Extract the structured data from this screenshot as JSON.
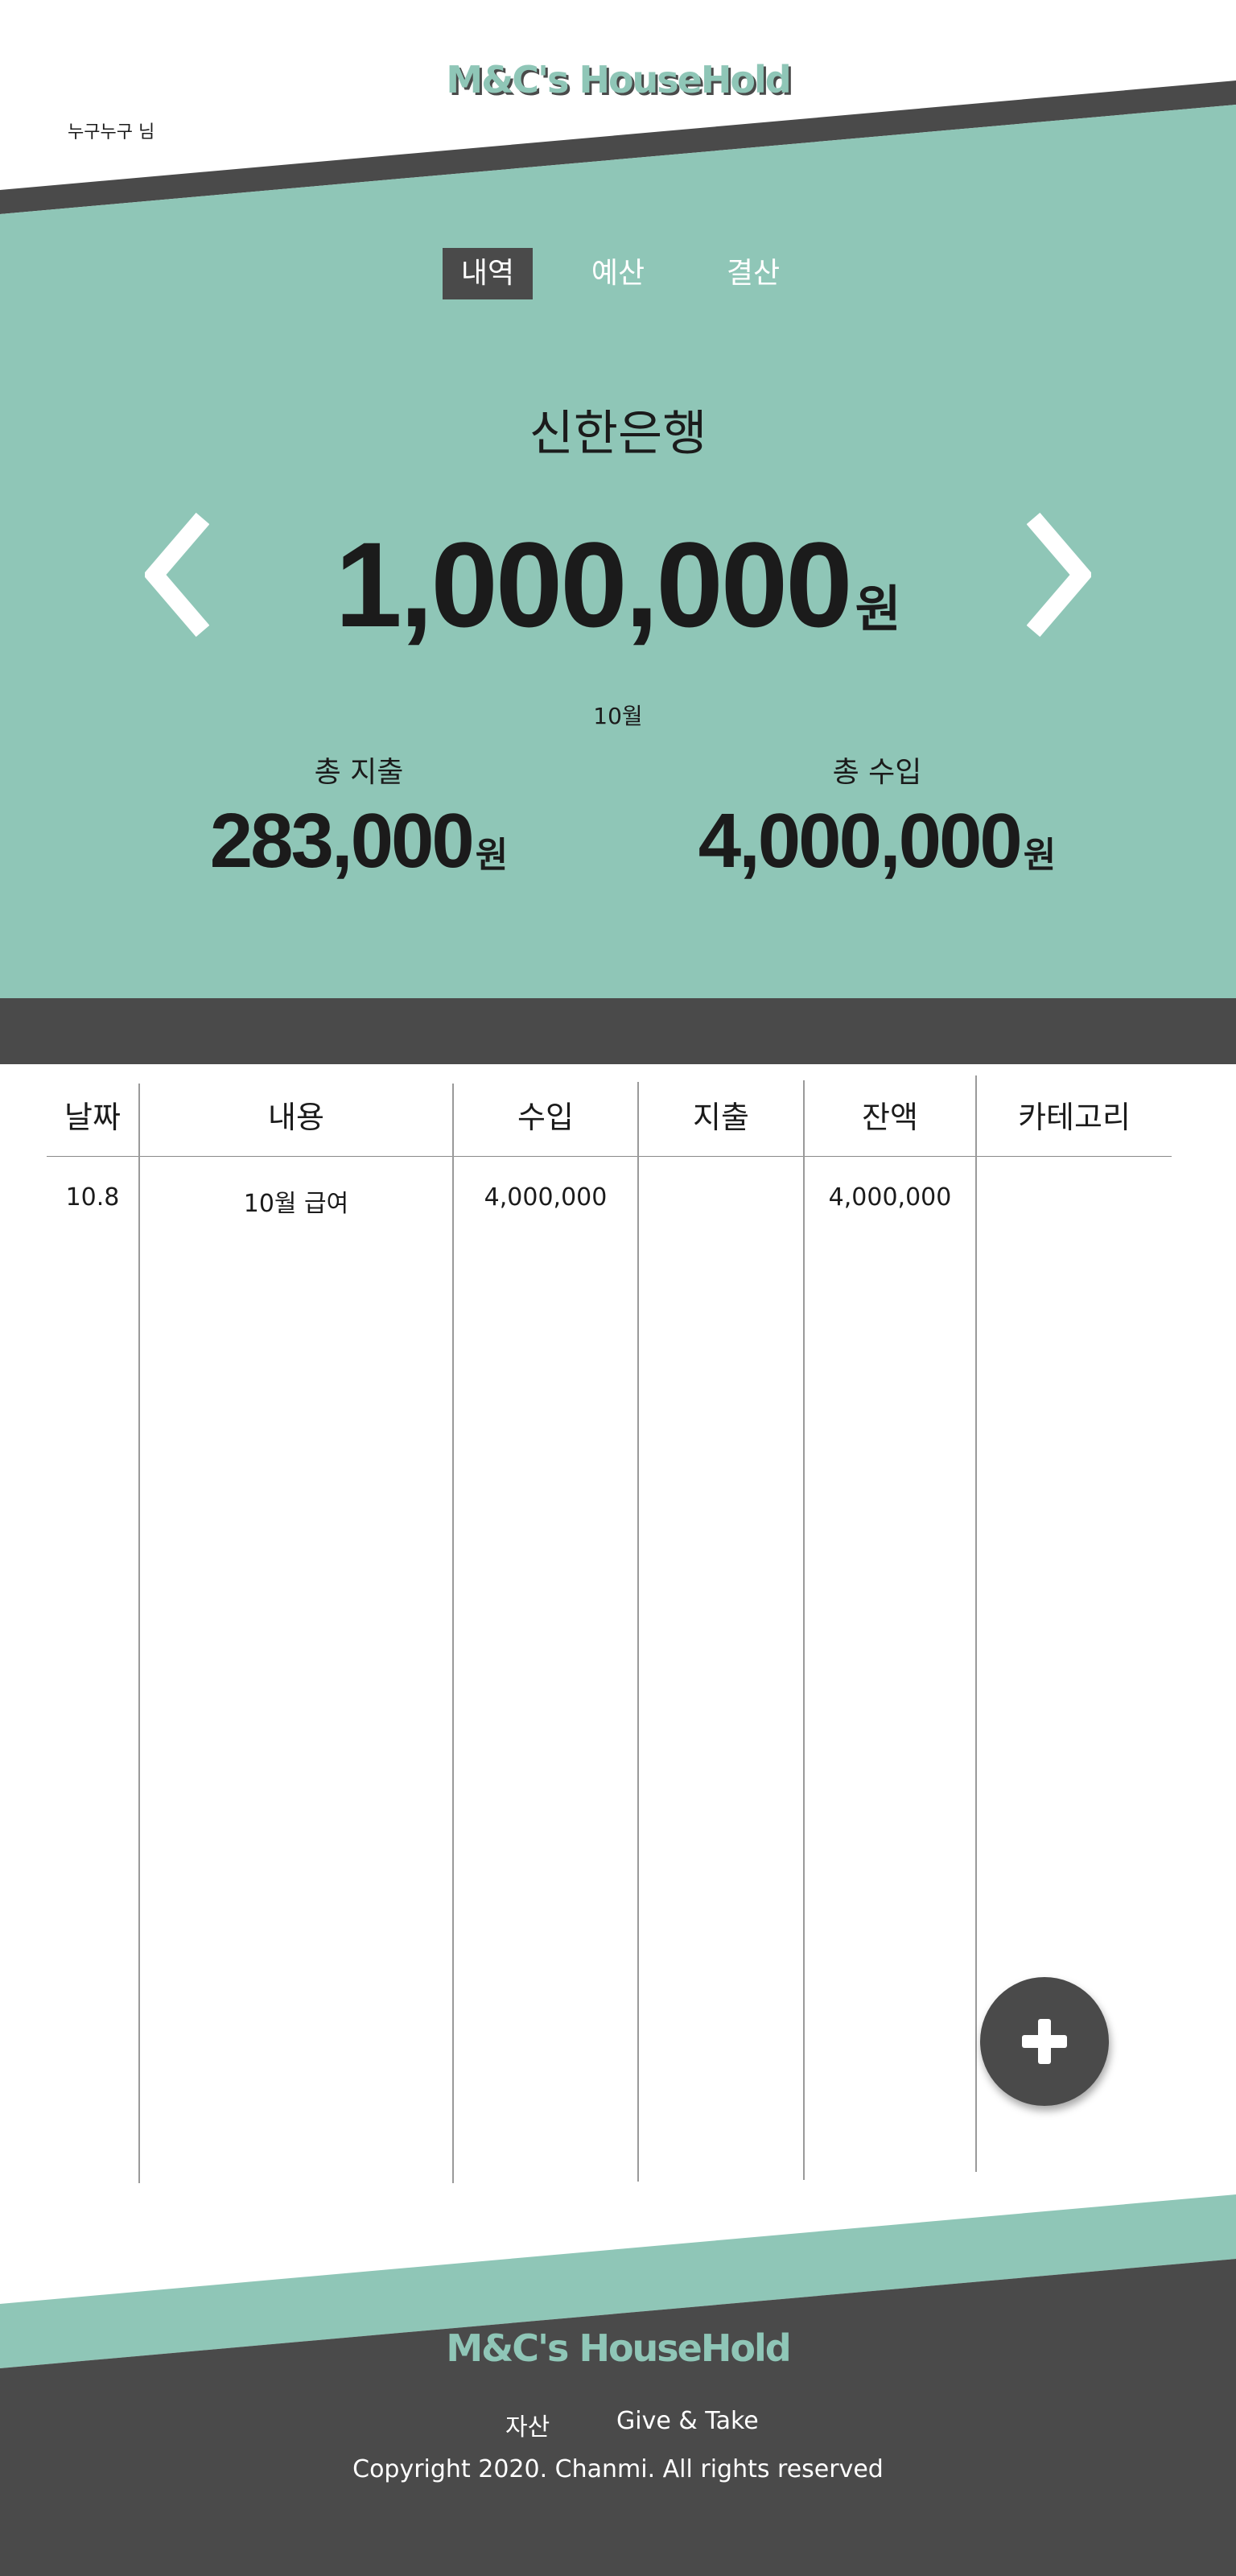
{
  "header": {
    "logo": "M&C's HouseHold",
    "user": "누구누구 님"
  },
  "tabs": [
    {
      "label": "내역",
      "active": true
    },
    {
      "label": "예산",
      "active": false
    },
    {
      "label": "결산",
      "active": false
    }
  ],
  "account": {
    "name": "신한은행",
    "balance": "1,000,000",
    "unit": "원"
  },
  "summary": {
    "month": "10월",
    "expense_label": "총 지출",
    "expense_value": "283,000",
    "income_label": "총 수입",
    "income_value": "4,000,000",
    "unit": "원"
  },
  "table": {
    "headers": [
      "날짜",
      "내용",
      "수입",
      "지출",
      "잔액",
      "카테고리"
    ],
    "rows": [
      {
        "date": "10.8",
        "content": "10월 급여",
        "income": "4,000,000",
        "expense": "",
        "balance": "4,000,000",
        "category": ""
      }
    ]
  },
  "footer": {
    "logo": "M&C's HouseHold",
    "links": [
      "자산",
      "Give & Take"
    ],
    "copyright": "Copyright 2020. Chanmi. All rights reserved"
  },
  "colors": {
    "mint": "#8fc6b7",
    "dark": "#4a4a4a",
    "white": "#ffffff"
  },
  "icons": {
    "prev": "chevron-left-icon",
    "next": "chevron-right-icon",
    "add": "plus-icon"
  }
}
